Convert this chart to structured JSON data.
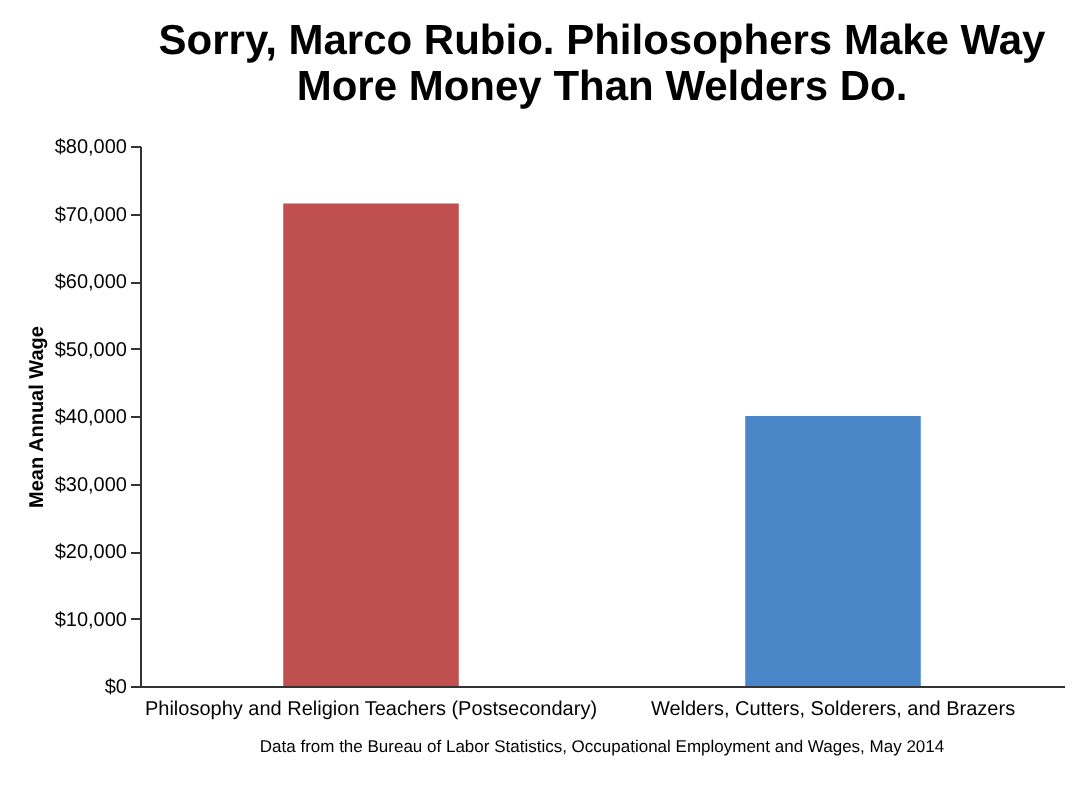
{
  "chart_data": {
    "type": "bar",
    "title": [
      "Sorry, Marco Rubio. Philosophers Make Way",
      "More Money Than Welders Do."
    ],
    "ylabel": "Mean Annual Wage",
    "categories": [
      "Philosophy and Religion Teachers (Postsecondary)",
      "Welders, Cutters, Solderers, and Brazers"
    ],
    "values": [
      71500,
      40000
    ],
    "colors": [
      "#c0504d",
      "#4a86c8"
    ],
    "ylim": [
      0,
      80000
    ],
    "yticks": [
      {
        "value": 0,
        "label": "$0"
      },
      {
        "value": 10000,
        "label": "$10,000"
      },
      {
        "value": 20000,
        "label": "$20,000"
      },
      {
        "value": 30000,
        "label": "$30,000"
      },
      {
        "value": 40000,
        "label": "$40,000"
      },
      {
        "value": 50000,
        "label": "$50,000"
      },
      {
        "value": 60000,
        "label": "$60,000"
      },
      {
        "value": 70000,
        "label": "$70,000"
      },
      {
        "value": 80000,
        "label": "$80,000"
      }
    ],
    "grid": false,
    "legend": false,
    "annotations": [
      "Data from the Bureau of Labor Statistics, Occupational Employment and Wages, May 2014"
    ]
  }
}
